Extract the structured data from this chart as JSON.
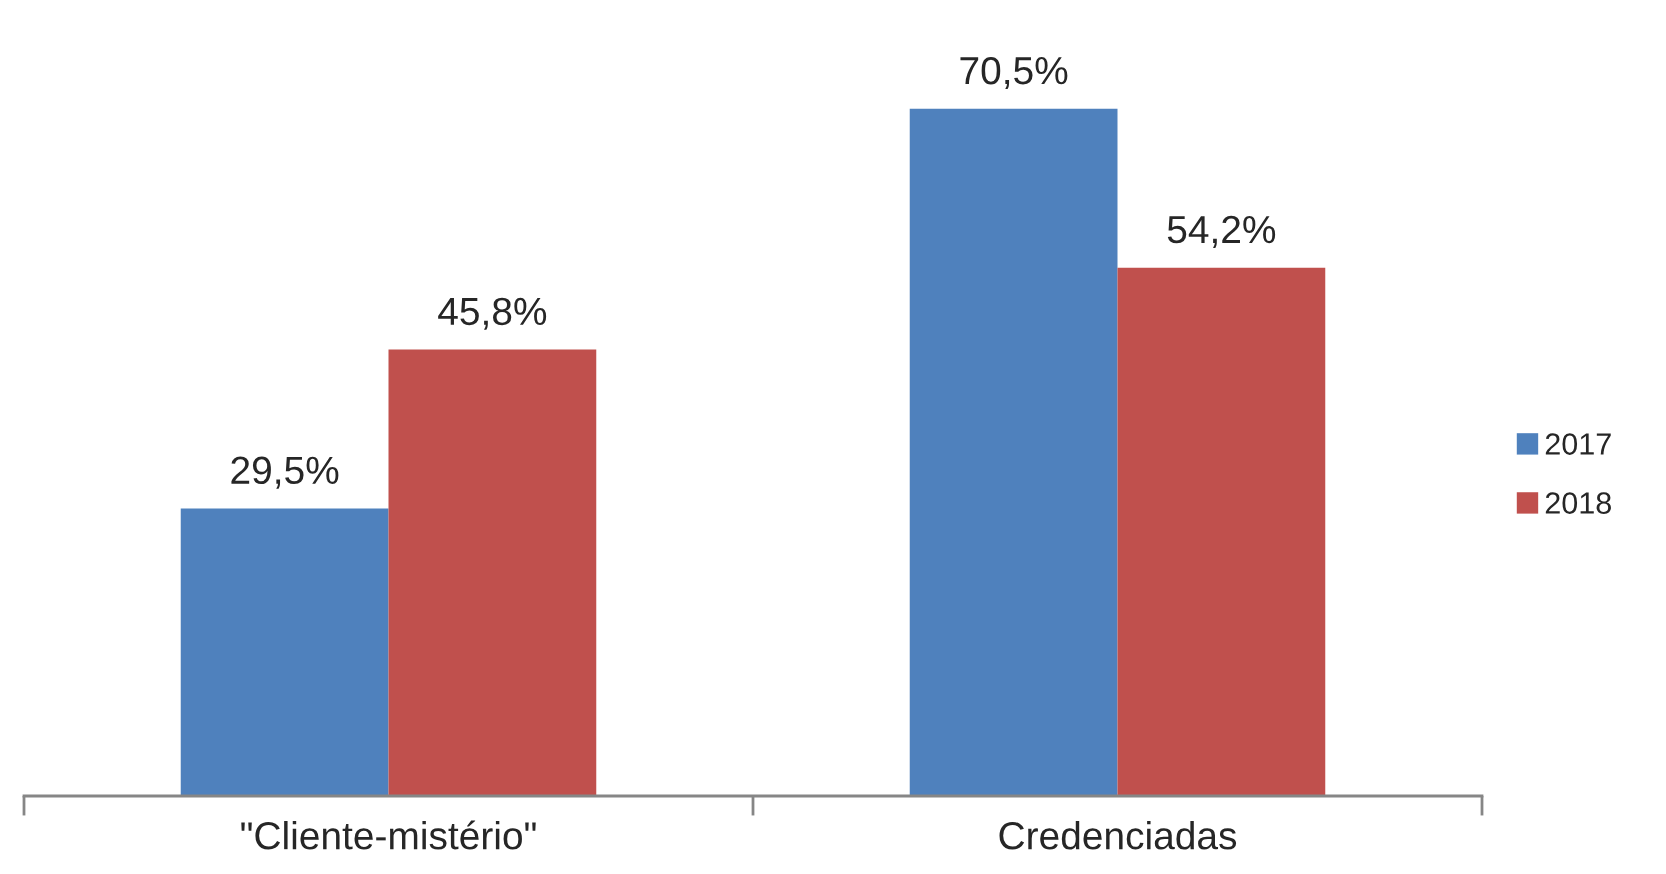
{
  "chart_data": {
    "type": "bar",
    "categories": [
      "\"Cliente-mistério\"",
      "Credenciadas"
    ],
    "series": [
      {
        "name": "2017",
        "color": "#4f81bd",
        "values": [
          29.5,
          70.5
        ],
        "value_labels": [
          "29,5%",
          "70,5%"
        ]
      },
      {
        "name": "2018",
        "color": "#c0504d",
        "values": [
          45.8,
          54.2
        ],
        "value_labels": [
          "45,8%",
          "54,2%"
        ]
      }
    ],
    "legend": "right",
    "tick_labels": "x"
  }
}
